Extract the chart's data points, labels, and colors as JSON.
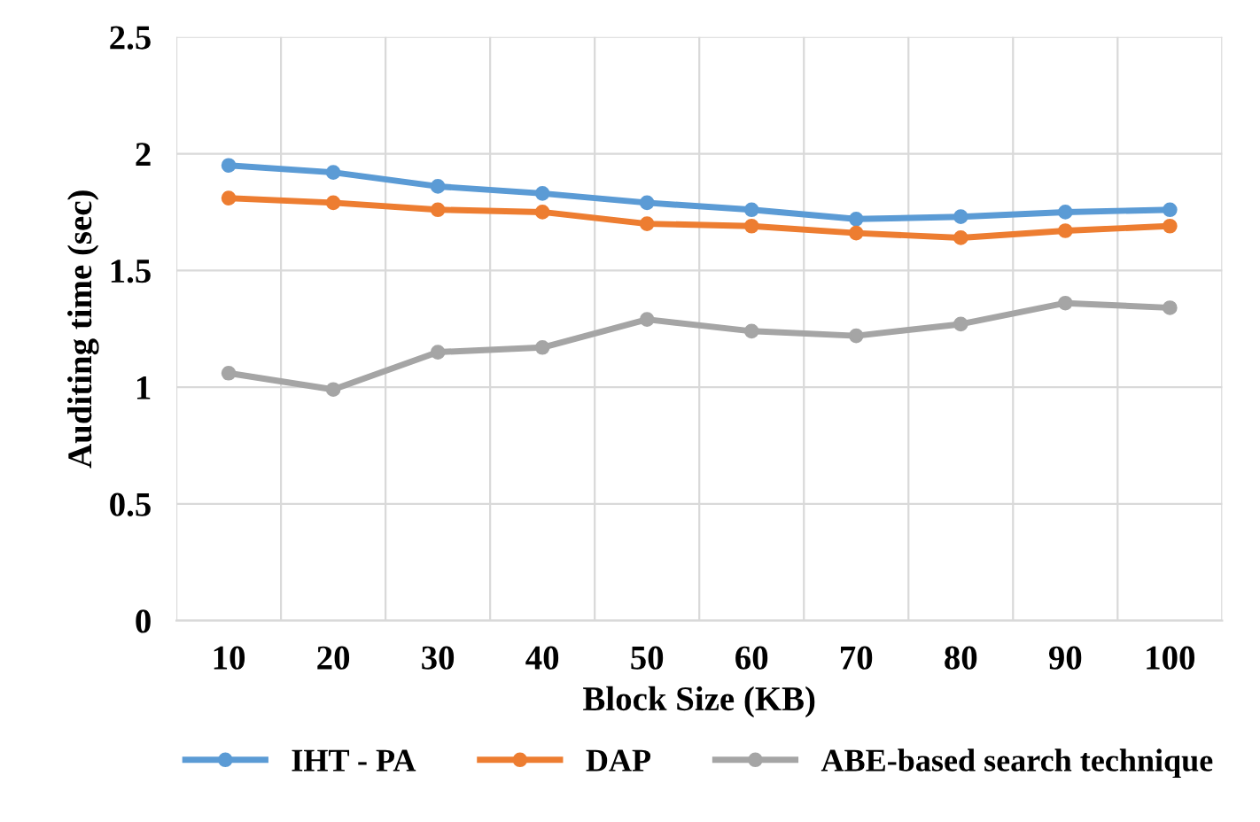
{
  "chart_data": {
    "type": "line",
    "xlabel": "Block Size (KB)",
    "ylabel": "Auditing time (sec)",
    "categories": [
      "10",
      "20",
      "30",
      "40",
      "50",
      "60",
      "70",
      "80",
      "90",
      "100"
    ],
    "series": [
      {
        "name": "IHT - PA",
        "color": "#5b9bd5",
        "values": [
          1.95,
          1.92,
          1.86,
          1.83,
          1.79,
          1.76,
          1.72,
          1.73,
          1.75,
          1.76
        ]
      },
      {
        "name": "DAP",
        "color": "#ed7d31",
        "values": [
          1.81,
          1.79,
          1.76,
          1.75,
          1.7,
          1.69,
          1.66,
          1.64,
          1.67,
          1.69
        ]
      },
      {
        "name": "ABE-based search technique",
        "color": "#a5a5a5",
        "values": [
          1.06,
          0.99,
          1.15,
          1.17,
          1.29,
          1.24,
          1.22,
          1.27,
          1.36,
          1.34
        ]
      }
    ],
    "ylim": [
      0,
      2.5
    ],
    "yticks": [
      0,
      0.5,
      1,
      1.5,
      2,
      2.5
    ],
    "grid": true,
    "legend": "bottom",
    "marker": "circle",
    "line_style": "solid"
  }
}
